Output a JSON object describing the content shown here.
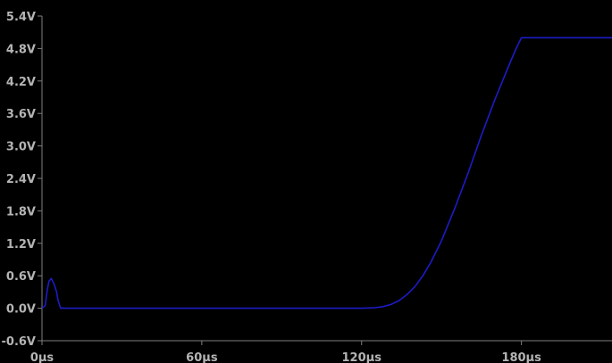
{
  "chart_data": {
    "type": "line",
    "title": "",
    "xlabel": "",
    "ylabel": "",
    "x_unit": "µs",
    "y_unit": "V",
    "xlim": [
      0,
      214
    ],
    "ylim": [
      -0.6,
      5.4
    ],
    "x_ticks": [
      {
        "value": 0,
        "label": "0µs"
      },
      {
        "value": 60,
        "label": "60µs"
      },
      {
        "value": 120,
        "label": "120µs"
      },
      {
        "value": 180,
        "label": "180µs"
      }
    ],
    "y_ticks": [
      {
        "value": 5.4,
        "label": "5.4V"
      },
      {
        "value": 4.8,
        "label": "4.8V"
      },
      {
        "value": 4.2,
        "label": "4.2V"
      },
      {
        "value": 3.6,
        "label": "3.6V"
      },
      {
        "value": 3.0,
        "label": "3.0V"
      },
      {
        "value": 2.4,
        "label": "2.4V"
      },
      {
        "value": 1.8,
        "label": "1.8V"
      },
      {
        "value": 1.2,
        "label": "1.2V"
      },
      {
        "value": 0.6,
        "label": "0.6V"
      },
      {
        "value": 0.0,
        "label": "0.0V"
      },
      {
        "value": -0.6,
        "label": "-0.6V"
      }
    ],
    "grid": false,
    "series": [
      {
        "color": "#1c1cc8",
        "x": [
          0,
          1.2,
          2.0,
          2.6,
          3.5,
          4.5,
          5.5,
          6.0,
          7.0,
          110,
          120,
          125,
          128,
          131,
          134,
          137,
          140,
          143,
          146,
          150,
          155,
          160,
          165,
          170,
          175,
          178,
          180,
          182,
          183,
          185,
          214
        ],
        "y": [
          0.0,
          0.05,
          0.35,
          0.5,
          0.55,
          0.45,
          0.3,
          0.15,
          0.0,
          0.0,
          0.0,
          0.01,
          0.03,
          0.07,
          0.14,
          0.25,
          0.4,
          0.6,
          0.85,
          1.25,
          1.85,
          2.5,
          3.2,
          3.85,
          4.45,
          4.8,
          5.0,
          5.0,
          5.0,
          5.0,
          5.0
        ]
      }
    ]
  },
  "colors": {
    "background": "#000000",
    "axis": "#808080",
    "tick_label": "#b4b4b4",
    "trace": "#1c1cc8"
  }
}
